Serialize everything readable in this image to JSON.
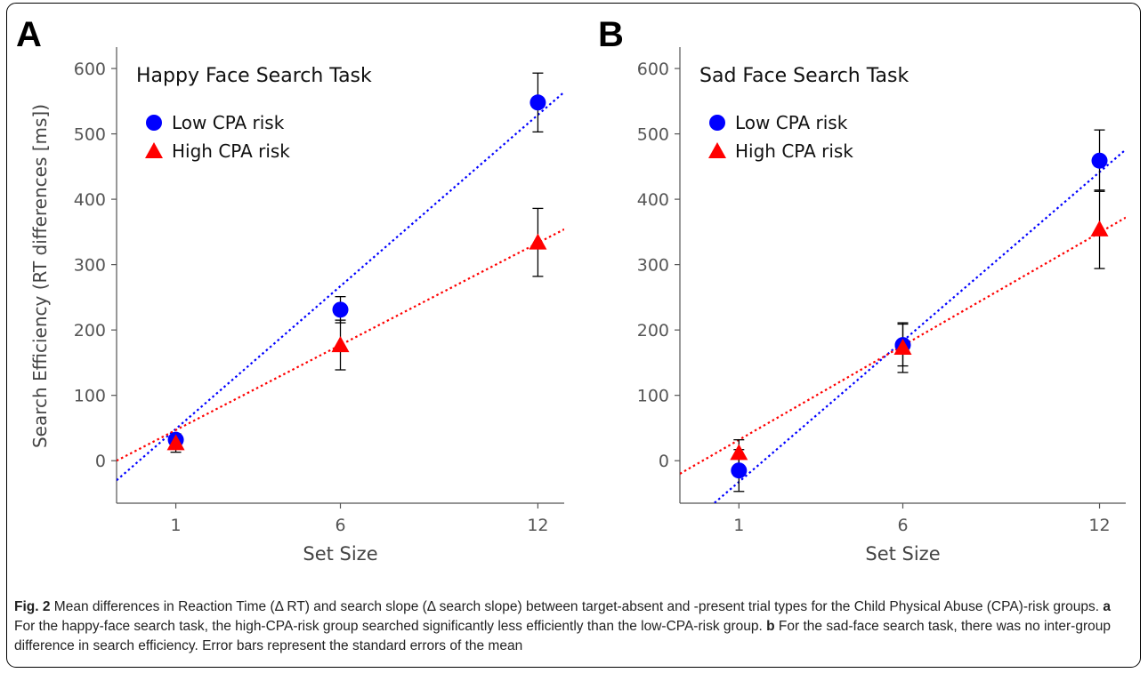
{
  "colors": {
    "low": "#0000ff",
    "high": "#ff0000",
    "axis": "#555555",
    "error_bar": "#000000"
  },
  "shared": {
    "ylabel": "Search Efficiency (RT differences [ms])",
    "xlabel": "Set Size"
  },
  "chart_data": [
    {
      "panel": "A",
      "type": "scatter",
      "title": "Happy Face Search Task",
      "xlabel": "Set Size",
      "ylabel": "Search Efficiency (RT differences [ms])",
      "x_ticks": [
        1,
        6,
        12
      ],
      "y_ticks": [
        0,
        100,
        200,
        300,
        400,
        500,
        600
      ],
      "xlim": [
        -0.8,
        12.8
      ],
      "ylim": [
        -65,
        630
      ],
      "legend_position": "top-left",
      "series": [
        {
          "name": "Low CPA risk",
          "marker": "circle",
          "x": [
            1,
            6,
            12
          ],
          "y": [
            32,
            231,
            548
          ],
          "se": [
            8,
            20,
            45
          ],
          "trendline": [
            [
              -0.8,
              -30
            ],
            [
              12.8,
              564
            ]
          ]
        },
        {
          "name": "High CPA risk",
          "marker": "triangle",
          "x": [
            1,
            6,
            12
          ],
          "y": [
            27,
            177,
            334
          ],
          "se": [
            14,
            38,
            52
          ],
          "trendline": [
            [
              -0.8,
              0
            ],
            [
              12.8,
              354
            ]
          ]
        }
      ]
    },
    {
      "panel": "B",
      "type": "scatter",
      "title": "Sad Face Search Task",
      "xlabel": "Set Size",
      "ylabel": "",
      "x_ticks": [
        1,
        6,
        12
      ],
      "y_ticks": [
        0,
        100,
        200,
        300,
        400,
        500,
        600
      ],
      "xlim": [
        -0.8,
        12.8
      ],
      "ylim": [
        -65,
        630
      ],
      "legend_position": "top-left",
      "series": [
        {
          "name": "Low CPA risk",
          "marker": "circle",
          "x": [
            1,
            6,
            12
          ],
          "y": [
            -15,
            177,
            459
          ],
          "se": [
            32,
            32,
            47
          ],
          "trendline": [
            [
              -0.8,
              -110
            ],
            [
              12.8,
              476
            ]
          ]
        },
        {
          "name": "High CPA risk",
          "marker": "triangle",
          "x": [
            1,
            6,
            12
          ],
          "y": [
            12,
            173,
            354
          ],
          "se": [
            20,
            38,
            60
          ],
          "trendline": [
            [
              -0.8,
              -20
            ],
            [
              12.8,
              372
            ]
          ]
        }
      ]
    }
  ],
  "caption": {
    "fig_label": "Fig. 2",
    "text1": " Mean differences in Reaction Time (Δ RT) and search slope (Δ search slope) between target-absent and -present trial types for the Child Physical Abuse (CPA)-risk groups. ",
    "a_label": "a",
    "text2": " For the happy-face search task, the high-CPA-risk group searched significantly less efficiently than the low-CPA-risk group. ",
    "b_label": "b",
    "text3": " For the sad-face search task, there was no inter-group difference in search efficiency. Error bars represent the standard errors of the mean"
  }
}
